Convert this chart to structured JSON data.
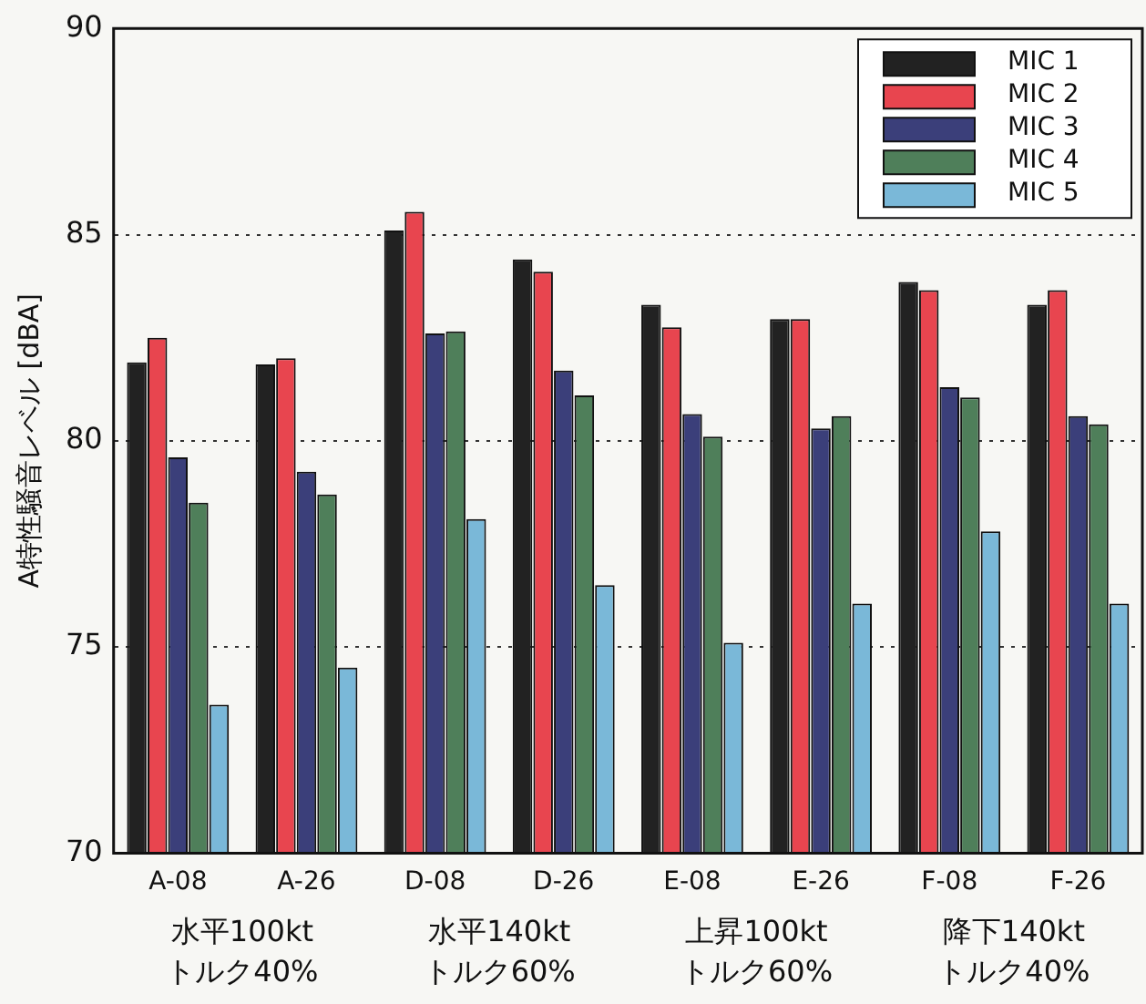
{
  "chart_data": {
    "type": "bar",
    "ylabel": "A特性騒音レベル [dBA]",
    "categories": [
      "A-08",
      "A-26",
      "D-08",
      "D-26",
      "E-08",
      "E-26",
      "F-08",
      "F-26"
    ],
    "series": [
      {
        "name": "MIC 1",
        "color": "#222222",
        "values": [
          81.9,
          81.85,
          85.1,
          84.4,
          83.3,
          82.95,
          83.85,
          83.3
        ]
      },
      {
        "name": "MIC 2",
        "color": "#e8454f",
        "values": [
          82.5,
          82.0,
          85.55,
          84.1,
          82.75,
          82.95,
          83.65,
          83.65
        ]
      },
      {
        "name": "MIC 3",
        "color": "#3b3f7a",
        "values": [
          79.6,
          79.25,
          82.6,
          81.7,
          80.65,
          80.3,
          81.3,
          80.6
        ]
      },
      {
        "name": "MIC 4",
        "color": "#4f7f5a",
        "values": [
          78.5,
          78.7,
          82.65,
          81.1,
          80.1,
          80.6,
          81.05,
          80.4
        ]
      },
      {
        "name": "MIC 5",
        "color": "#7ab8d8",
        "values": [
          73.6,
          74.5,
          78.1,
          76.5,
          75.1,
          76.05,
          77.8,
          76.05
        ]
      }
    ],
    "ylim": [
      70,
      90
    ],
    "yticks": [
      70,
      75,
      80,
      85,
      90
    ],
    "grid": "y",
    "legend": "top right",
    "annotations": [
      "水平100kt\nトルク40%",
      "水平140kt\nトルク60%",
      "上昇100kt\nトルク60%",
      "降下140kt\nトルク40%"
    ]
  }
}
